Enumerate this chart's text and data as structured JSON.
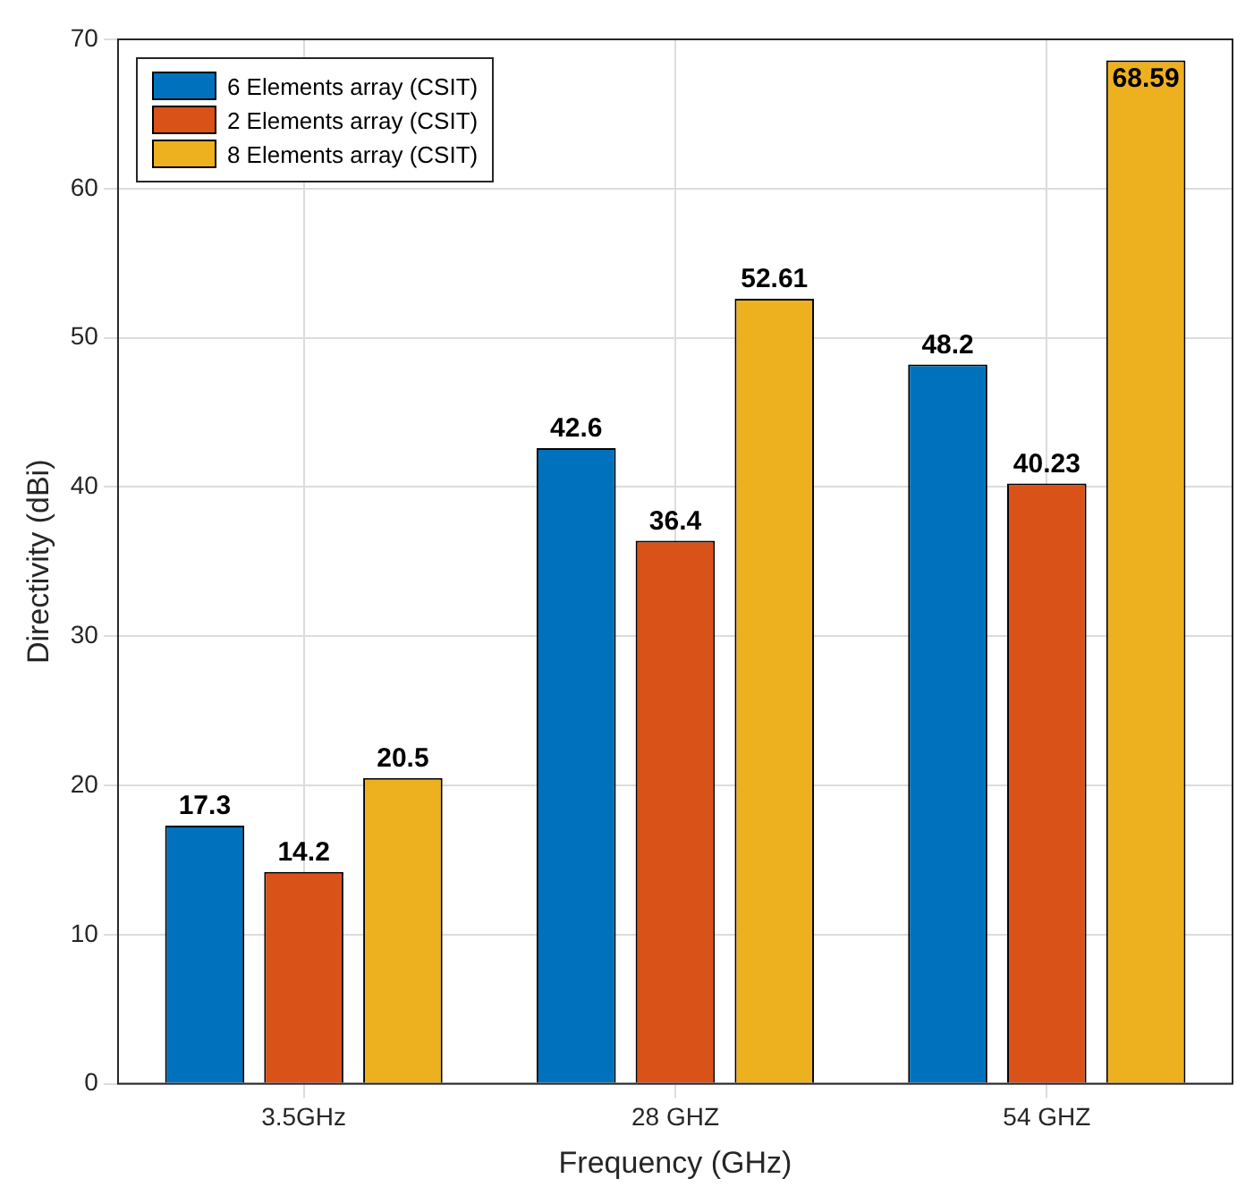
{
  "chart_data": {
    "type": "bar",
    "xlabel": "Frequency (GHz)",
    "ylabel": "Directivity (dBi)",
    "categories": [
      "3.5GHz",
      "28 GHZ",
      "54 GHZ"
    ],
    "series": [
      {
        "name": "6 Elements array (CSIT)",
        "color": "#0072bd",
        "values": [
          17.3,
          42.6,
          48.2
        ]
      },
      {
        "name": "2 Elements array (CSIT)",
        "color": "#d95319",
        "values": [
          14.2,
          36.4,
          40.23
        ]
      },
      {
        "name": "8 Elements array (CSIT)",
        "color": "#edb120",
        "values": [
          20.5,
          52.61,
          68.59
        ]
      }
    ],
    "ylim": [
      0,
      70
    ],
    "yticks": [
      0,
      10,
      20,
      30,
      40,
      50,
      60,
      70
    ],
    "grid": true,
    "legend": "top left",
    "data_labels": true
  }
}
